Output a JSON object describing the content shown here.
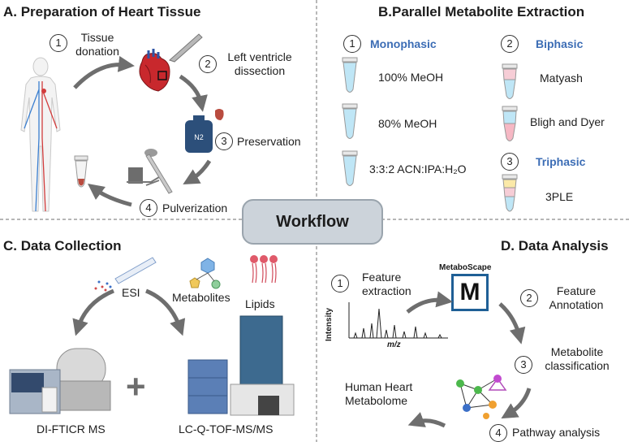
{
  "colors": {
    "arrow": "#6e6e6e",
    "blue": "#3c6db5",
    "workflow_bg": "#ccd3da"
  },
  "center": {
    "label": "Workflow"
  },
  "A": {
    "title": "A. Preparation of Heart Tissue",
    "steps": [
      {
        "n": "1",
        "label": "Tissue\ndonation"
      },
      {
        "n": "2",
        "label": "Left ventricle\ndissection"
      },
      {
        "n": "3",
        "label": "Preservation"
      },
      {
        "n": "4",
        "label": "Pulverization"
      }
    ],
    "icons": [
      "human-body-icon",
      "heart-icon",
      "scalpel-icon",
      "tissue-piece-icon",
      "liquid-nitrogen-dewar-icon",
      "mortar-pestle-icon",
      "tube-icon"
    ],
    "dewar_label": "N2"
  },
  "B": {
    "title": "B.Parallel Metabolite Extraction",
    "groups": [
      {
        "n": "1",
        "name": "Monophasic",
        "items": [
          "100% MeOH",
          "80% MeOH",
          "3:3:2 ACN:IPA:H₂O"
        ]
      },
      {
        "n": "2",
        "name": "Biphasic",
        "items": [
          "Matyash",
          "Bligh and Dyer"
        ]
      },
      {
        "n": "3",
        "name": "Triphasic",
        "items": [
          "3PLE"
        ]
      }
    ]
  },
  "C": {
    "title": "C. Data Collection",
    "labels": {
      "esi": "ESI",
      "metabolites": "Metabolites",
      "lipids": "Lipids",
      "inst1": "DI-FTICR MS",
      "inst2": "LC-Q-TOF-MS/MS",
      "plus": "+"
    }
  },
  "D": {
    "title": "D. Data Analysis",
    "steps": [
      {
        "n": "1",
        "label": "Feature\nextraction"
      },
      {
        "n": "2",
        "label": "Feature\nAnnotation"
      },
      {
        "n": "3",
        "label": "Metabolite\nclassification"
      },
      {
        "n": "4",
        "label": "Pathway analysis"
      }
    ],
    "software": "MetaboScape",
    "software_letter": "M",
    "ylabel": "Intensity",
    "xlabel": "m/z",
    "result": "Human Heart\nMetabolome"
  }
}
